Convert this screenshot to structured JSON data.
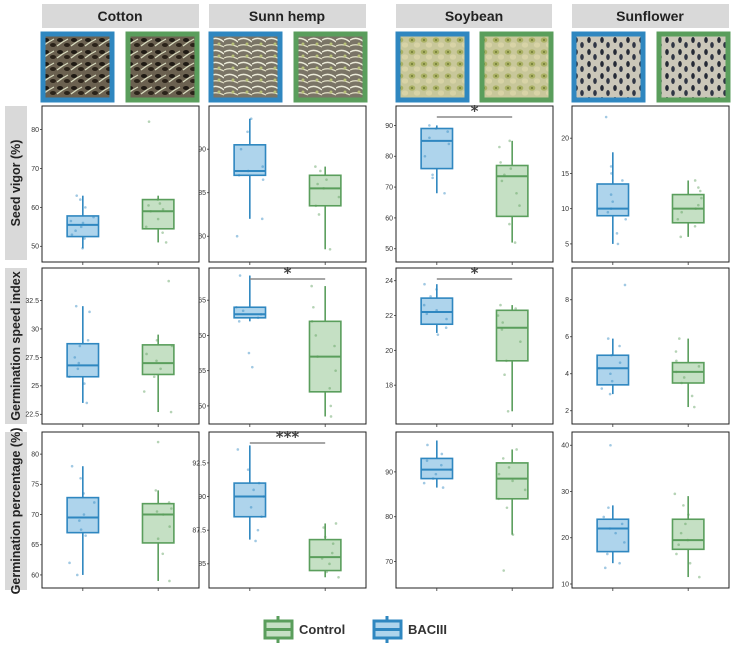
{
  "crops": [
    "Cotton",
    "Sunn hemp",
    "Soybean",
    "Sunflower"
  ],
  "row_labels": [
    "Seed vigor (%)",
    "Germination speed index",
    "Germination percentage (%)"
  ],
  "legend": [
    {
      "label": "Control",
      "color": "#5a9e5c",
      "fill": "#c5e0c4"
    },
    {
      "label": "BACIII",
      "color": "#2f87c0",
      "fill": "#aed4ec"
    }
  ],
  "photo_frame_order": [
    "BACIII",
    "Control"
  ],
  "chart_data": {
    "type": "box",
    "groups_per_panel": [
      "BACIII",
      "Control"
    ],
    "panels": [
      {
        "row": "Seed vigor (%)",
        "crop": "Cotton",
        "yticks": [
          50,
          60,
          70,
          80
        ],
        "ylim": [
          47,
          85
        ],
        "BACIII": {
          "min": 49.5,
          "q1": 52.5,
          "median": 55.5,
          "q3": 57.8,
          "max": 63,
          "points": [
            49.5,
            52,
            53,
            54,
            55,
            56,
            56.5,
            57.5,
            60,
            62,
            63
          ]
        },
        "Control": {
          "min": 51,
          "q1": 54.5,
          "median": 59,
          "q3": 62,
          "max": 63,
          "points": [
            51,
            53.5,
            55,
            57,
            59,
            59.5,
            60.5,
            61,
            62,
            82
          ]
        },
        "significance": ""
      },
      {
        "row": "Seed vigor (%)",
        "crop": "Sunn hemp",
        "yticks": [
          80,
          85,
          90
        ],
        "ylim": [
          77.5,
          94.5
        ],
        "BACIII": {
          "min": 82,
          "q1": 87,
          "median": 87.5,
          "q3": 90.5,
          "max": 93.5,
          "points": [
            80,
            82,
            86.5,
            87,
            87.5,
            88,
            90,
            92,
            93.5
          ]
        },
        "Control": {
          "min": 78.5,
          "q1": 83.5,
          "median": 85.5,
          "q3": 87,
          "max": 88,
          "points": [
            78.5,
            82.5,
            83.5,
            84.5,
            85.5,
            86,
            86.5,
            87.5,
            88
          ]
        },
        "significance": ""
      },
      {
        "row": "Seed vigor (%)",
        "crop": "Soybean",
        "yticks": [
          50,
          60,
          70,
          80,
          90
        ],
        "ylim": [
          47,
          95
        ],
        "BACIII": {
          "min": 68,
          "q1": 76,
          "median": 85,
          "q3": 89,
          "max": 90,
          "points": [
            68,
            73,
            74,
            80,
            84,
            86,
            88,
            89,
            90
          ]
        },
        "Control": {
          "min": 52,
          "q1": 60.5,
          "median": 73.5,
          "q3": 77,
          "max": 85,
          "points": [
            52,
            58,
            64,
            68,
            72,
            74,
            76,
            78,
            83,
            85
          ]
        },
        "significance": "*"
      },
      {
        "row": "Seed vigor (%)",
        "crop": "Sunflower",
        "yticks": [
          5,
          10,
          15,
          20
        ],
        "ylim": [
          3,
          24
        ],
        "BACIII": {
          "min": 5,
          "q1": 9,
          "median": 10,
          "q3": 13.5,
          "max": 18,
          "points": [
            5,
            6.5,
            8.5,
            9.5,
            10,
            11,
            12,
            14,
            15,
            16,
            23
          ]
        },
        "Control": {
          "min": 6,
          "q1": 8,
          "median": 10,
          "q3": 12,
          "max": 14,
          "points": [
            6,
            7.5,
            8.5,
            9.5,
            10,
            10.5,
            11.5,
            12.5,
            13,
            14
          ]
        },
        "significance": ""
      },
      {
        "row": "Germination speed index",
        "crop": "Cotton",
        "yticks": [
          22.5,
          25,
          27.5,
          30,
          32.5
        ],
        "ylim": [
          22,
          35
        ],
        "BACIII": {
          "min": 23.5,
          "q1": 25.8,
          "median": 26.8,
          "q3": 28.7,
          "max": 32,
          "points": [
            23.5,
            25.2,
            25.8,
            26.5,
            27,
            27.5,
            28.5,
            29,
            31.5,
            32
          ]
        },
        "Control": {
          "min": 22.7,
          "q1": 26,
          "median": 27,
          "q3": 28.6,
          "max": 29.5,
          "points": [
            22.7,
            24.5,
            25.8,
            26.5,
            27.2,
            27.8,
            28.5,
            29,
            34.2
          ]
        },
        "significance": ""
      },
      {
        "row": "Germination speed index",
        "crop": "Sunn hemp",
        "yticks": [
          50,
          55,
          60,
          65
        ],
        "ylim": [
          48,
          69
        ],
        "BACIII": {
          "min": 62,
          "q1": 62.5,
          "median": 63,
          "q3": 64,
          "max": 68.5,
          "points": [
            55.5,
            57.5,
            62,
            62.5,
            63,
            63.5,
            64,
            68.5
          ]
        },
        "Control": {
          "min": 48.5,
          "q1": 52,
          "median": 57,
          "q3": 62,
          "max": 67,
          "points": [
            48.5,
            50,
            52.5,
            55,
            57,
            58.5,
            60,
            62,
            64,
            67
          ]
        },
        "significance": "*"
      },
      {
        "row": "Germination speed index",
        "crop": "Soybean",
        "yticks": [
          18,
          20,
          22,
          24
        ],
        "ylim": [
          16,
          24.5
        ],
        "BACIII": {
          "min": 21,
          "q1": 21.5,
          "median": 22.2,
          "q3": 23,
          "max": 23.8,
          "points": [
            20.9,
            21.3,
            21.8,
            22.1,
            22.3,
            22.6,
            23.1,
            23.5,
            23.8
          ]
        },
        "Control": {
          "min": 16.5,
          "q1": 19.4,
          "median": 21.3,
          "q3": 22.3,
          "max": 22.6,
          "points": [
            16.5,
            18.6,
            19.4,
            20.5,
            21.2,
            21.6,
            22,
            22.4,
            22.6
          ]
        },
        "significance": "*"
      },
      {
        "row": "Germination speed index",
        "crop": "Sunflower",
        "yticks": [
          2,
          4,
          6,
          8
        ],
        "ylim": [
          1.5,
          9.5
        ],
        "BACIII": {
          "min": 2.9,
          "q1": 3.4,
          "median": 4.3,
          "q3": 5,
          "max": 5.9,
          "points": [
            2.9,
            3.2,
            3.6,
            4,
            4.3,
            4.6,
            5,
            5.5,
            5.9,
            8.8
          ]
        },
        "Control": {
          "min": 2.2,
          "q1": 3.5,
          "median": 4.1,
          "q3": 4.6,
          "max": 5.9,
          "points": [
            2.2,
            2.8,
            3.5,
            3.8,
            4.1,
            4.4,
            4.7,
            5.2,
            5.9
          ]
        },
        "significance": ""
      },
      {
        "row": "Germination percentage (%)",
        "crop": "Cotton",
        "yticks": [
          60,
          65,
          70,
          75,
          80
        ],
        "ylim": [
          58.5,
          83
        ],
        "BACIII": {
          "min": 60,
          "q1": 67,
          "median": 69.5,
          "q3": 72.8,
          "max": 78,
          "points": [
            60,
            62,
            66.5,
            67.5,
            69,
            70,
            72,
            73.5,
            76,
            78
          ]
        },
        "Control": {
          "min": 59,
          "q1": 65.3,
          "median": 70,
          "q3": 71.8,
          "max": 74,
          "points": [
            59,
            63.5,
            66,
            68,
            70,
            70.5,
            71,
            72,
            74,
            82
          ]
        },
        "significance": ""
      },
      {
        "row": "Germination percentage (%)",
        "crop": "Sunn hemp",
        "yticks": [
          85,
          87.5,
          90,
          92.5
        ],
        "ylim": [
          83.5,
          94.5
        ],
        "BACIII": {
          "min": 86.8,
          "q1": 88.5,
          "median": 90,
          "q3": 91,
          "max": 93.8,
          "points": [
            86.7,
            87.5,
            88.5,
            89.2,
            90,
            90.5,
            91,
            92,
            93.5
          ]
        },
        "Control": {
          "min": 84,
          "q1": 84.5,
          "median": 85.5,
          "q3": 86.8,
          "max": 88,
          "points": [
            84,
            84.4,
            85,
            85.4,
            85.8,
            86.5,
            87,
            87.7,
            88
          ]
        },
        "significance": "***"
      },
      {
        "row": "Germination percentage (%)",
        "crop": "Soybean",
        "yticks": [
          70,
          80,
          90
        ],
        "ylim": [
          65,
          98
        ],
        "BACIII": {
          "min": 86.5,
          "q1": 88.5,
          "median": 90.5,
          "q3": 93,
          "max": 97,
          "points": [
            86.5,
            87.5,
            88.5,
            89.5,
            90.5,
            91.5,
            92.5,
            94,
            96
          ]
        },
        "Control": {
          "min": 76,
          "q1": 84,
          "median": 88.5,
          "q3": 92,
          "max": 95,
          "points": [
            68,
            76,
            82,
            84,
            86,
            88,
            89.5,
            91,
            93,
            95
          ]
        },
        "significance": ""
      },
      {
        "row": "Germination percentage (%)",
        "crop": "Sunflower",
        "yticks": [
          10,
          20,
          30,
          40
        ],
        "ylim": [
          10,
          42
        ],
        "BACIII": {
          "min": 14.5,
          "q1": 17,
          "median": 22,
          "q3": 24,
          "max": 27,
          "points": [
            13.5,
            14.5,
            16.5,
            19,
            21,
            22,
            23,
            24.5,
            26.5,
            40
          ]
        },
        "Control": {
          "min": 11.5,
          "q1": 17.5,
          "median": 19.5,
          "q3": 24,
          "max": 29,
          "points": [
            11.5,
            14.5,
            16.5,
            18.5,
            19.5,
            21,
            23,
            25,
            27,
            29.5
          ]
        },
        "significance": ""
      }
    ]
  }
}
